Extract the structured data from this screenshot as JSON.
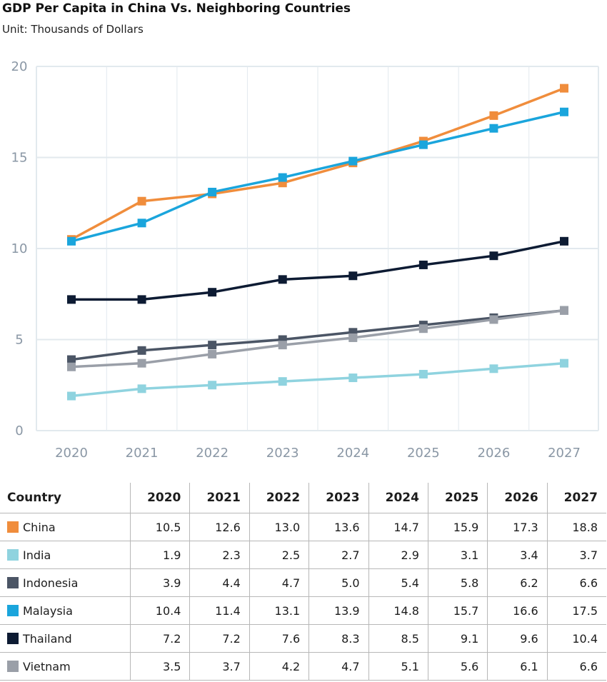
{
  "chart_data": {
    "type": "line",
    "title": "GDP Per Capita in China Vs. Neighboring Countries",
    "subtitle": "Unit: Thousands of Dollars",
    "x": [
      "2020",
      "2021",
      "2022",
      "2023",
      "2024",
      "2025",
      "2026",
      "2027"
    ],
    "ylim": [
      0,
      20
    ],
    "yticks": [
      "0",
      "5",
      "10",
      "15",
      "20"
    ],
    "grid": true,
    "series": [
      {
        "name": "China",
        "color": "#f08d3c",
        "values": [
          10.5,
          12.6,
          13.0,
          13.6,
          14.7,
          15.9,
          17.3,
          18.8
        ]
      },
      {
        "name": "India",
        "color": "#8fd3df",
        "values": [
          1.9,
          2.3,
          2.5,
          2.7,
          2.9,
          3.1,
          3.4,
          3.7
        ]
      },
      {
        "name": "Indonesia",
        "color": "#4b5565",
        "values": [
          3.9,
          4.4,
          4.7,
          5.0,
          5.4,
          5.8,
          6.2,
          6.6
        ]
      },
      {
        "name": "Malaysia",
        "color": "#1aa5dc",
        "values": [
          10.4,
          11.4,
          13.1,
          13.9,
          14.8,
          15.7,
          16.6,
          17.5
        ]
      },
      {
        "name": "Thailand",
        "color": "#0d1b33",
        "values": [
          7.2,
          7.2,
          7.6,
          8.3,
          8.5,
          9.1,
          9.6,
          10.4
        ]
      },
      {
        "name": "Vietnam",
        "color": "#9a9fa8",
        "values": [
          3.5,
          3.7,
          4.2,
          4.7,
          5.1,
          5.6,
          6.1,
          6.6
        ]
      }
    ]
  },
  "table": {
    "header_label": "Country",
    "rows": [
      {
        "country": "China",
        "values": [
          "10.5",
          "12.6",
          "13.0",
          "13.6",
          "14.7",
          "15.9",
          "17.3",
          "18.8"
        ]
      },
      {
        "country": "India",
        "values": [
          "1.9",
          "2.3",
          "2.5",
          "2.7",
          "2.9",
          "3.1",
          "3.4",
          "3.7"
        ]
      },
      {
        "country": "Indonesia",
        "values": [
          "3.9",
          "4.4",
          "4.7",
          "5.0",
          "5.4",
          "5.8",
          "6.2",
          "6.6"
        ]
      },
      {
        "country": "Malaysia",
        "values": [
          "10.4",
          "11.4",
          "13.1",
          "13.9",
          "14.8",
          "15.7",
          "16.6",
          "17.5"
        ]
      },
      {
        "country": "Thailand",
        "values": [
          "7.2",
          "7.2",
          "7.6",
          "8.3",
          "8.5",
          "9.1",
          "9.6",
          "10.4"
        ]
      },
      {
        "country": "Vietnam",
        "values": [
          "3.5",
          "3.7",
          "4.2",
          "4.7",
          "5.1",
          "5.6",
          "6.1",
          "6.6"
        ]
      }
    ]
  }
}
